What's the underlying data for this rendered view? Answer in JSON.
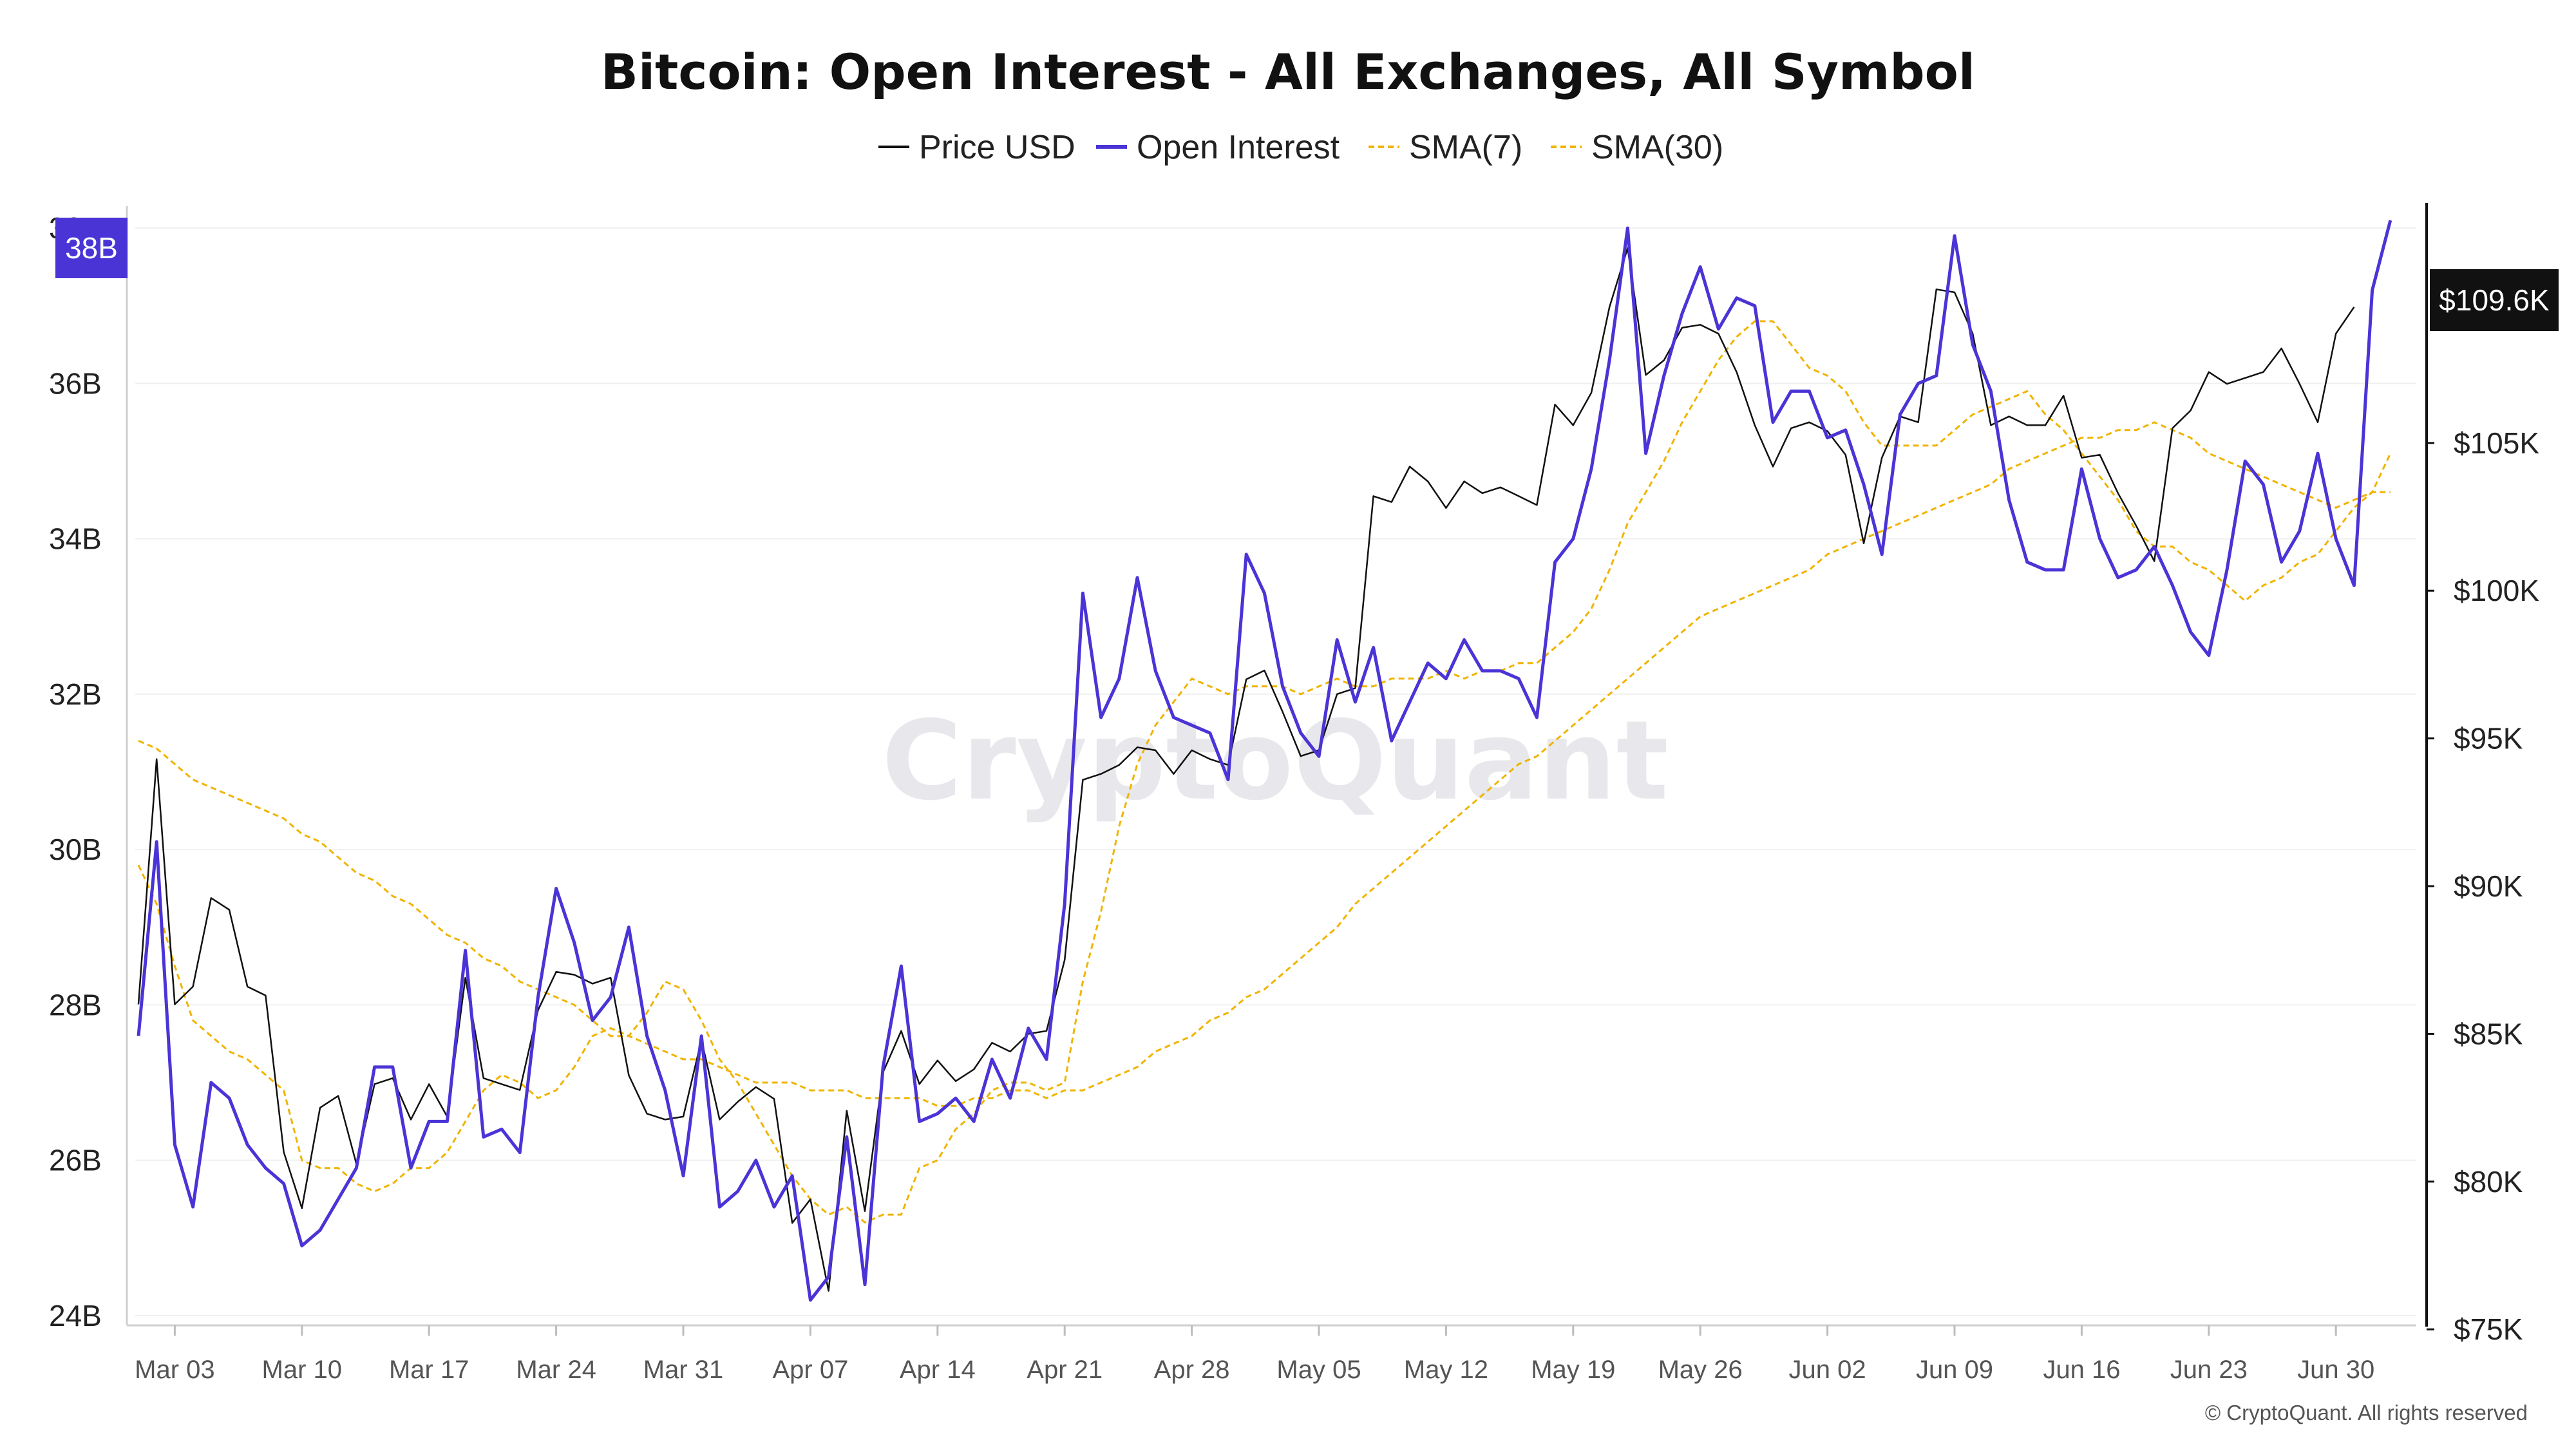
{
  "chart_data": {
    "type": "line",
    "title": "Bitcoin: Open Interest - All Exchanges, All Symbol",
    "legend": [
      "Price USD",
      "Open Interest",
      "SMA(7)",
      "SMA(30)"
    ],
    "legend_placement": "top-center",
    "colors": {
      "price": "#111111",
      "open_interest": "#4a34d6",
      "sma7": "#f0b400",
      "sma30": "#f0b400",
      "oi_badge": "#4a34d6",
      "price_badge": "#111111",
      "grid": "#f0f0f0"
    },
    "x_ticks": [
      "Mar 03",
      "Mar 10",
      "Mar 17",
      "Mar 24",
      "Mar 31",
      "Apr 07",
      "Apr 14",
      "Apr 21",
      "Apr 28",
      "May 05",
      "May 12",
      "May 19",
      "May 26",
      "Jun 02",
      "Jun 09",
      "Jun 16",
      "Jun 23",
      "Jun 30"
    ],
    "x_start": "Mar 01",
    "left_axis": {
      "ticks": [
        "24B",
        "26B",
        "28B",
        "30B",
        "32B",
        "34B",
        "36B",
        "38B"
      ],
      "tick_values": [
        24,
        26,
        28,
        30,
        32,
        34,
        36,
        38
      ],
      "range": [
        23.9,
        38.2
      ],
      "unit": "B"
    },
    "right_axis": {
      "ticks": [
        "$75K",
        "$80K",
        "$85K",
        "$90K",
        "$95K",
        "$100K",
        "$105K"
      ],
      "tick_values": [
        75,
        80,
        85,
        90,
        95,
        100,
        105
      ],
      "range": [
        75.2,
        112.8
      ],
      "unit": "K"
    },
    "current_oi_label": "38B",
    "current_price_label": "$109.6K",
    "watermark": "CryptoQuant",
    "copyright": "© CryptoQuant. All rights reserved",
    "grid": true,
    "series": [
      {
        "name": "Price USD",
        "axis": "right",
        "values": [
          86.0,
          94.3,
          86.0,
          86.6,
          89.6,
          89.2,
          86.6,
          86.3,
          81.0,
          79.1,
          82.5,
          82.9,
          80.6,
          83.3,
          83.5,
          82.1,
          83.3,
          82.2,
          86.9,
          83.5,
          83.3,
          83.1,
          85.8,
          87.1,
          87.0,
          86.7,
          86.9,
          83.6,
          82.3,
          82.1,
          82.2,
          84.8,
          82.1,
          82.7,
          83.2,
          82.8,
          78.6,
          79.4,
          76.3,
          82.4,
          79.0,
          83.7,
          85.1,
          83.3,
          84.1,
          83.4,
          83.8,
          84.7,
          84.4,
          85.0,
          85.1,
          87.5,
          93.6,
          93.8,
          94.1,
          94.7,
          94.6,
          93.8,
          94.6,
          94.3,
          94.1,
          97.0,
          97.3,
          95.9,
          94.4,
          94.6,
          96.5,
          96.7,
          103.2,
          103.0,
          104.2,
          103.7,
          102.8,
          103.7,
          103.3,
          103.5,
          103.2,
          102.9,
          106.3,
          105.6,
          106.7,
          109.6,
          111.6,
          107.3,
          107.8,
          108.9,
          109.0,
          108.7,
          107.4,
          105.6,
          104.2,
          105.5,
          105.7,
          105.4,
          104.6,
          101.6,
          104.5,
          105.9,
          105.7,
          110.2,
          110.1,
          108.7,
          105.6,
          105.9,
          105.6,
          105.6,
          106.6,
          104.5,
          104.6,
          103.3,
          102.2,
          101.0,
          105.5,
          106.1,
          107.4,
          107.0,
          107.2,
          107.4,
          108.2,
          107.0,
          105.7,
          108.7,
          109.6
        ]
      },
      {
        "name": "Open Interest",
        "axis": "left",
        "values": [
          27.6,
          30.1,
          26.2,
          25.4,
          27.0,
          26.8,
          26.2,
          25.9,
          25.7,
          24.9,
          25.1,
          25.5,
          25.9,
          27.2,
          27.2,
          25.9,
          26.5,
          26.5,
          28.7,
          26.3,
          26.4,
          26.1,
          28.1,
          29.5,
          28.8,
          27.8,
          28.1,
          29.0,
          27.6,
          26.9,
          25.8,
          27.6,
          25.4,
          25.6,
          26.0,
          25.4,
          25.8,
          24.2,
          24.5,
          26.3,
          24.4,
          27.2,
          28.5,
          26.5,
          26.6,
          26.8,
          26.5,
          27.3,
          26.8,
          27.7,
          27.3,
          29.3,
          33.3,
          31.7,
          32.2,
          33.5,
          32.3,
          31.7,
          31.6,
          31.5,
          30.9,
          33.8,
          33.3,
          32.1,
          31.5,
          31.2,
          32.7,
          31.9,
          32.6,
          31.4,
          31.9,
          32.4,
          32.2,
          32.7,
          32.3,
          32.3,
          32.2,
          31.7,
          33.7,
          34.0,
          34.9,
          36.3,
          38.0,
          35.1,
          36.1,
          36.9,
          37.5,
          36.7,
          37.1,
          37.0,
          35.5,
          35.9,
          35.9,
          35.3,
          35.4,
          34.7,
          33.8,
          35.6,
          36.0,
          36.1,
          37.9,
          36.5,
          35.9,
          34.5,
          33.7,
          33.6,
          33.6,
          34.9,
          34.0,
          33.5,
          33.6,
          33.9,
          33.4,
          32.8,
          32.5,
          33.6,
          35.0,
          34.7,
          33.7,
          34.1,
          35.1,
          34.0,
          33.4,
          37.2,
          38.1
        ]
      },
      {
        "name": "SMA(7)",
        "axis": "left",
        "values": [
          29.8,
          29.3,
          28.5,
          27.8,
          27.6,
          27.4,
          27.3,
          27.1,
          26.9,
          26.0,
          25.9,
          25.9,
          25.7,
          25.6,
          25.7,
          25.9,
          25.9,
          26.1,
          26.5,
          26.9,
          27.1,
          27.0,
          26.8,
          26.9,
          27.2,
          27.6,
          27.7,
          27.6,
          27.9,
          28.3,
          28.2,
          27.8,
          27.3,
          27.0,
          26.6,
          26.2,
          25.8,
          25.5,
          25.3,
          25.4,
          25.2,
          25.3,
          25.3,
          25.9,
          26.0,
          26.4,
          26.6,
          26.9,
          27.0,
          27.0,
          26.9,
          27.0,
          28.3,
          29.2,
          30.3,
          31.1,
          31.6,
          31.9,
          32.2,
          32.1,
          32.0,
          32.1,
          32.1,
          32.1,
          32.0,
          32.1,
          32.2,
          32.1,
          32.1,
          32.2,
          32.2,
          32.2,
          32.3,
          32.2,
          32.3,
          32.3,
          32.4,
          32.4,
          32.6,
          32.8,
          33.1,
          33.6,
          34.2,
          34.6,
          35.0,
          35.5,
          35.9,
          36.3,
          36.6,
          36.8,
          36.8,
          36.5,
          36.2,
          36.1,
          35.9,
          35.5,
          35.2,
          35.2,
          35.2,
          35.2,
          35.4,
          35.6,
          35.7,
          35.8,
          35.9,
          35.6,
          35.4,
          35.1,
          34.8,
          34.5,
          34.1,
          33.9,
          33.9,
          33.7,
          33.6,
          33.4,
          33.2,
          33.4,
          33.5,
          33.7,
          33.8,
          34.1,
          34.4,
          34.6,
          35.1
        ]
      },
      {
        "name": "SMA(30)",
        "axis": "left",
        "values": [
          31.4,
          31.3,
          31.1,
          30.9,
          30.8,
          30.7,
          30.6,
          30.5,
          30.4,
          30.2,
          30.1,
          29.9,
          29.7,
          29.6,
          29.4,
          29.3,
          29.1,
          28.9,
          28.8,
          28.6,
          28.5,
          28.3,
          28.2,
          28.1,
          28.0,
          27.8,
          27.6,
          27.6,
          27.5,
          27.4,
          27.3,
          27.3,
          27.2,
          27.1,
          27.0,
          27.0,
          27.0,
          26.9,
          26.9,
          26.9,
          26.8,
          26.8,
          26.8,
          26.8,
          26.7,
          26.7,
          26.8,
          26.8,
          26.9,
          26.9,
          26.8,
          26.9,
          26.9,
          27.0,
          27.1,
          27.2,
          27.4,
          27.5,
          27.6,
          27.8,
          27.9,
          28.1,
          28.2,
          28.4,
          28.6,
          28.8,
          29.0,
          29.3,
          29.5,
          29.7,
          29.9,
          30.1,
          30.3,
          30.5,
          30.7,
          30.9,
          31.1,
          31.2,
          31.4,
          31.6,
          31.8,
          32.0,
          32.2,
          32.4,
          32.6,
          32.8,
          33.0,
          33.1,
          33.2,
          33.3,
          33.4,
          33.5,
          33.6,
          33.8,
          33.9,
          34.0,
          34.1,
          34.2,
          34.3,
          34.4,
          34.5,
          34.6,
          34.7,
          34.9,
          35.0,
          35.1,
          35.2,
          35.3,
          35.3,
          35.4,
          35.4,
          35.5,
          35.4,
          35.3,
          35.1,
          35.0,
          34.9,
          34.8,
          34.7,
          34.6,
          34.5,
          34.4,
          34.5,
          34.6,
          34.6
        ]
      }
    ]
  }
}
